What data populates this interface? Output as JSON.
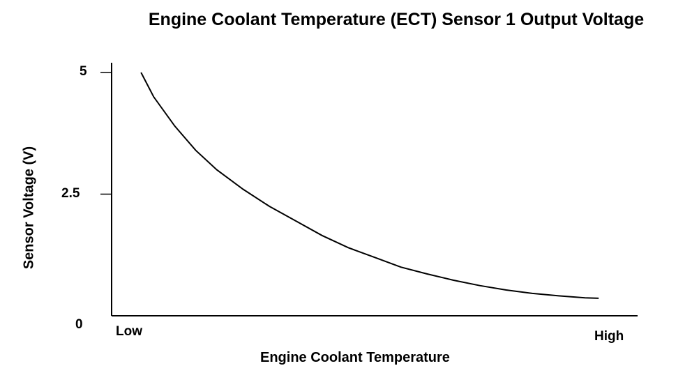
{
  "chart_data": {
    "type": "line",
    "title": "Engine Coolant Temperature (ECT) Sensor 1 Output Voltage",
    "xlabel": "Engine Coolant Temperature",
    "ylabel": "Sensor Voltage (V)",
    "x_tick_labels": [
      "Low",
      "High"
    ],
    "y_ticks": [
      {
        "value": 5,
        "label": "5"
      },
      {
        "value": 2.5,
        "label": "2.5"
      },
      {
        "value": 0,
        "label": "0"
      }
    ],
    "ylim": [
      0,
      5.2
    ],
    "xlim": [
      0,
      100
    ],
    "grid": false,
    "series": [
      {
        "x": [
          5.6,
          8,
          12,
          16,
          20,
          25,
          30,
          35,
          40,
          45,
          50,
          55,
          60,
          65,
          70,
          75,
          80,
          85,
          90,
          92.6
        ],
        "y": [
          5.0,
          4.5,
          3.9,
          3.4,
          3.0,
          2.6,
          2.25,
          1.95,
          1.65,
          1.4,
          1.2,
          1.0,
          0.86,
          0.73,
          0.62,
          0.53,
          0.46,
          0.41,
          0.37,
          0.36
        ],
        "color": "#000000"
      }
    ]
  }
}
